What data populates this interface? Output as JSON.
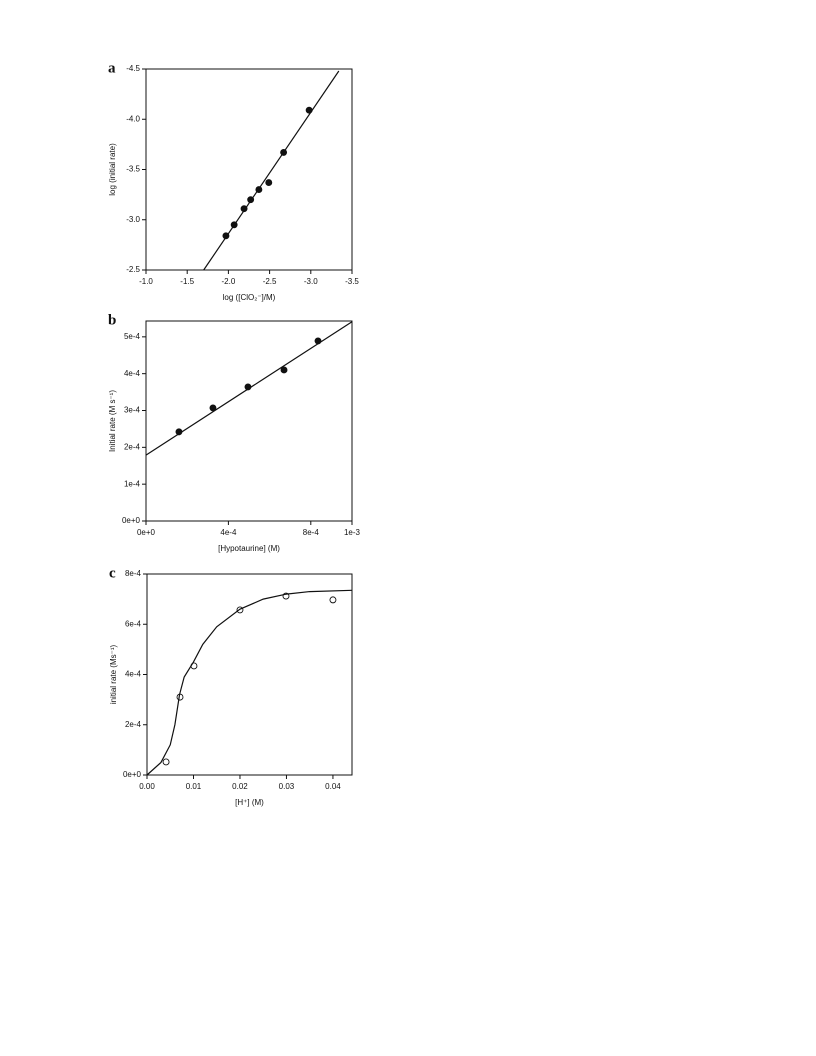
{
  "chart_data": [
    {
      "type": "scatter",
      "label": "a",
      "xlabel": "log ([ClO₂⁻]/M)",
      "ylabel": "log (initial rate)",
      "xlim": [
        -1.0,
        -3.5
      ],
      "ylim": [
        -2.5,
        -4.5
      ],
      "xticks": [
        {
          "value": -1,
          "label": "-1.0"
        },
        -1.5,
        {
          "value": -2,
          "label": "-2.0"
        },
        -2.5,
        {
          "value": -3,
          "label": "-3.0"
        },
        -3.5
      ],
      "yticks": [
        -2.5,
        {
          "value": -3,
          "label": "-3.0"
        },
        -3.5,
        {
          "value": -4,
          "label": "-4.0"
        },
        -4.5
      ],
      "series": [
        {
          "mode": "markers",
          "fill": "filled",
          "color": "#111111",
          "x": [
            -1.97,
            -2.07,
            -2.19,
            -2.27,
            -2.37,
            -2.49,
            -2.67,
            -2.98
          ],
          "values": [
            -2.84,
            -2.95,
            -3.11,
            -3.2,
            -3.3,
            -3.37,
            -3.67,
            -4.09
          ]
        },
        {
          "mode": "lines",
          "color": "#111111",
          "x": [
            -1.7,
            -3.34
          ],
          "values": [
            -2.5,
            -4.48
          ]
        }
      ]
    },
    {
      "type": "scatter",
      "label": "b",
      "xlabel": "[Hypotaurine] (M)",
      "ylabel": "Initial rate (M s⁻¹)",
      "xlim": [
        0,
        0.001
      ],
      "ylim": [
        0,
        0.000543
      ],
      "xticks": [
        {
          "value": 0,
          "label": "0e+0"
        },
        {
          "value": 0.0004,
          "label": "4e-4"
        },
        {
          "value": 0.0008,
          "label": "8e-4"
        },
        {
          "value": 0.001,
          "label": "1e-3"
        }
      ],
      "yticks": [
        {
          "value": 0,
          "label": "0e+0"
        },
        {
          "value": 0.0001,
          "label": "1e-4"
        },
        {
          "value": 0.0002,
          "label": "2e-4"
        },
        {
          "value": 0.0003,
          "label": "3e-4"
        },
        {
          "value": 0.0004,
          "label": "4e-4"
        },
        {
          "value": 0.0005,
          "label": "5e-4"
        }
      ],
      "series": [
        {
          "mode": "markers",
          "fill": "filled",
          "color": "#111111",
          "x": [
            0.00016,
            0.000325,
            0.000495,
            0.00067,
            0.000835
          ],
          "values": [
            0.000242,
            0.000307,
            0.000364,
            0.00041,
            0.000489
          ]
        },
        {
          "mode": "lines",
          "color": "#111111",
          "x": [
            0,
            0.001
          ],
          "values": [
            0.000179,
            0.000541
          ]
        }
      ]
    },
    {
      "type": "scatter",
      "label": "c",
      "xlabel": "[H⁺] (M)",
      "ylabel": "initial rate (Ms⁻¹)",
      "xlim": [
        0,
        0.0441
      ],
      "ylim": [
        0,
        0.0008
      ],
      "xticks": [
        {
          "value": 0,
          "label": "0.00"
        },
        0.01,
        0.02,
        0.03,
        0.04
      ],
      "yticks": [
        {
          "value": 0,
          "label": "0e+0"
        },
        {
          "value": 0.0002,
          "label": "2e-4"
        },
        {
          "value": 0.0004,
          "label": "4e-4"
        },
        {
          "value": 0.0006,
          "label": "6e-4"
        },
        {
          "value": 0.0008,
          "label": "8e-4"
        }
      ],
      "series": [
        {
          "mode": "markers",
          "fill": "open",
          "color": "#111111",
          "x": [
            0.0041,
            0.0071,
            0.0101,
            0.02,
            0.0299,
            0.04
          ],
          "values": [
            5.2e-05,
            0.00031,
            0.000434,
            0.000657,
            0.000712,
            0.000697
          ]
        },
        {
          "mode": "lines",
          "color": "#111111",
          "x": [
            0,
            0.003,
            0.005,
            0.006,
            0.007,
            0.008,
            0.01,
            0.012,
            0.015,
            0.02,
            0.025,
            0.03,
            0.035,
            0.0441
          ],
          "values": [
            0,
            5e-05,
            0.00012,
            0.0002,
            0.00032,
            0.00039,
            0.00045,
            0.00052,
            0.00059,
            0.00066,
            0.0007,
            0.00072,
            0.00073,
            0.000735
          ]
        }
      ]
    }
  ]
}
